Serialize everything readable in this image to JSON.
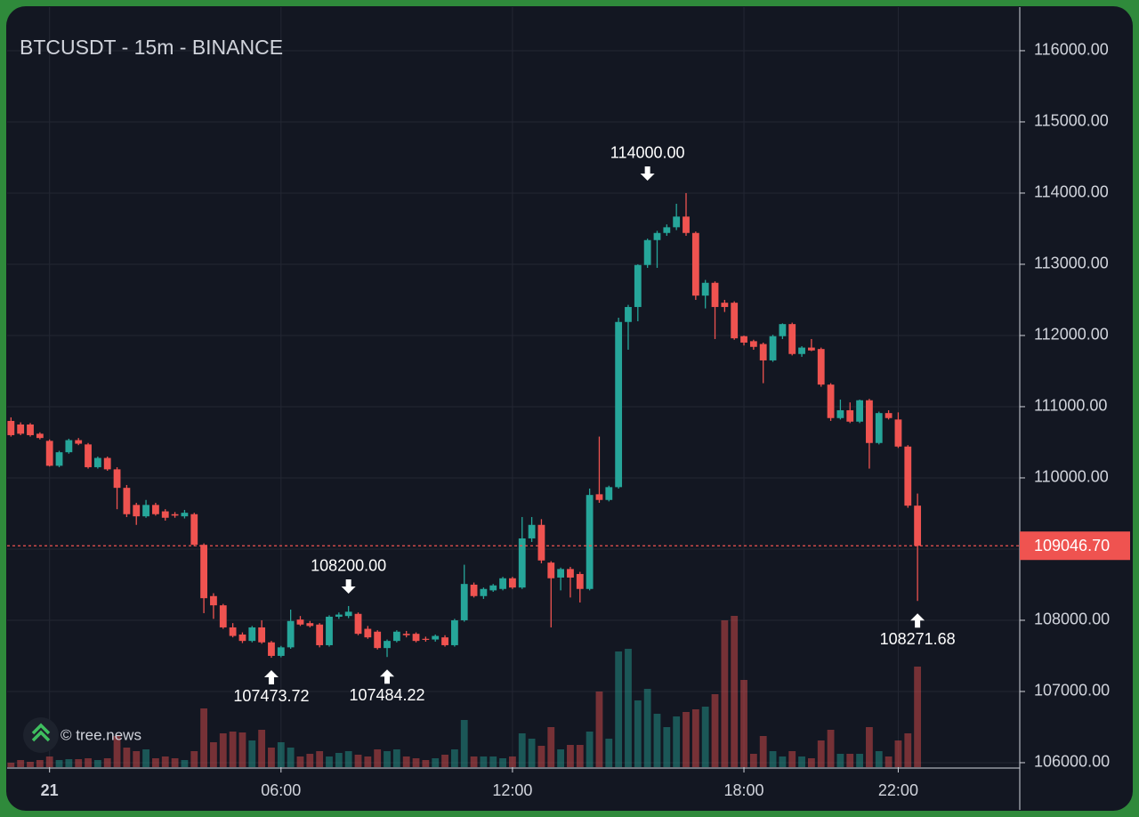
{
  "chart_data": {
    "type": "candlestick",
    "title": "BTCUSDT - 15m - BINANCE",
    "watermark": "© tree.news",
    "up_color": "#26a69a",
    "down_color": "#ef5350",
    "grid": true,
    "x": [
      -60,
      -45,
      -30,
      -15,
      0,
      15,
      30,
      45,
      60,
      75,
      90,
      105,
      120,
      135,
      150,
      165,
      180,
      195,
      210,
      225,
      240,
      255,
      270,
      285,
      300,
      315,
      330,
      345,
      360,
      375,
      390,
      405,
      420,
      435,
      450,
      465,
      480,
      495,
      510,
      525,
      540,
      555,
      570,
      585,
      600,
      615,
      630,
      645,
      660,
      675,
      690,
      705,
      720,
      735,
      750,
      765,
      780,
      795,
      810,
      825,
      840,
      855,
      870,
      885,
      900,
      915,
      930,
      945,
      960,
      975,
      990,
      1005,
      1020,
      1035,
      1050,
      1065,
      1080,
      1095,
      1110,
      1125,
      1140,
      1155,
      1170,
      1185,
      1200,
      1215,
      1230,
      1245,
      1260,
      1275,
      1290,
      1305,
      1320,
      1335,
      1350
    ],
    "open": [
      110800,
      110750,
      110750,
      110620,
      110520,
      110170,
      110360,
      110530,
      110470,
      110150,
      110280,
      110120,
      109860,
      109620,
      109460,
      109620,
      109530,
      109490,
      109460,
      109490,
      109060,
      108340,
      108210,
      107900,
      107800,
      107710,
      107900,
      107690,
      107500,
      107620,
      108010,
      107960,
      107940,
      107650,
      108050,
      108060,
      108090,
      107880,
      107840,
      107610,
      107710,
      107810,
      107810,
      107740,
      107730,
      107760,
      107650,
      108000,
      108500,
      108340,
      108420,
      108440,
      108590,
      108460,
      109150,
      109340,
      108810,
      108600,
      108720,
      108650,
      108440,
      109770,
      109690,
      109870,
      112190,
      112400,
      112990,
      113340,
      113440,
      113520,
      113670,
      113440,
      112560,
      112740,
      112460,
      112460,
      111990,
      111920,
      111880,
      111650,
      111990,
      112160,
      111740,
      111830,
      111810,
      111310,
      110840,
      110950,
      110790,
      111090,
      110490,
      110910,
      110820,
      110440,
      109610
    ],
    "high": [
      110850,
      110780,
      110770,
      110640,
      110540,
      110380,
      110550,
      110560,
      110490,
      110300,
      110300,
      110150,
      109900,
      109650,
      109690,
      109650,
      109560,
      109520,
      109550,
      109510,
      109080,
      108380,
      108230,
      107960,
      107830,
      107920,
      108000,
      107710,
      107640,
      108150,
      108060,
      107990,
      107960,
      108070,
      108110,
      108200,
      108110,
      107920,
      107860,
      107730,
      107860,
      107850,
      107830,
      107770,
      107800,
      107790,
      108020,
      108780,
      108530,
      108460,
      108510,
      108610,
      108610,
      109450,
      109450,
      109420,
      108830,
      108740,
      108750,
      108680,
      109850,
      110580,
      109890,
      112250,
      112430,
      113000,
      113360,
      113470,
      113560,
      113850,
      114000,
      113460,
      112780,
      112760,
      112500,
      112480,
      112000,
      111940,
      111900,
      112010,
      112170,
      112180,
      111850,
      111950,
      111830,
      111330,
      111100,
      111060,
      111100,
      111110,
      110930,
      110950,
      110920,
      110460,
      109780
    ],
    "low": [
      110580,
      110600,
      110580,
      110540,
      110160,
      110150,
      110340,
      110460,
      110130,
      110130,
      110100,
      109560,
      109450,
      109340,
      109440,
      109470,
      109400,
      109440,
      109430,
      109040,
      108100,
      108020,
      107880,
      107760,
      107680,
      107690,
      107670,
      107473.72,
      107480,
      107600,
      107920,
      107900,
      107620,
      107630,
      108020,
      108030,
      107790,
      107740,
      107590,
      107484.22,
      107690,
      107760,
      107690,
      107700,
      107700,
      107630,
      107630,
      107980,
      108320,
      108300,
      108400,
      108420,
      108440,
      108440,
      109100,
      108800,
      107900,
      108420,
      108320,
      108250,
      108420,
      109650,
      109670,
      109850,
      111800,
      112200,
      112950,
      112950,
      113400,
      113480,
      113400,
      112500,
      112380,
      111950,
      112330,
      111940,
      111860,
      111800,
      111330,
      111630,
      111950,
      111720,
      111700,
      111780,
      111280,
      110800,
      110820,
      110770,
      110770,
      110130,
      110470,
      110820,
      110420,
      109580,
      108271.68
    ],
    "close": [
      110600,
      110620,
      110600,
      110560,
      110170,
      110360,
      110530,
      110480,
      110150,
      110280,
      110120,
      109860,
      109490,
      109460,
      109620,
      109490,
      109440,
      109470,
      109510,
      109060,
      108310,
      108210,
      107900,
      107780,
      107710,
      107900,
      107690,
      107500,
      107620,
      107990,
      107940,
      107920,
      107650,
      108050,
      108080,
      108120,
      107810,
      107760,
      107610,
      107710,
      107840,
      107790,
      107710,
      107730,
      107780,
      107650,
      108000,
      108510,
      108340,
      108440,
      108490,
      108590,
      108460,
      109150,
      109340,
      108840,
      108590,
      108720,
      108600,
      108440,
      109760,
      109690,
      109870,
      112190,
      112400,
      112990,
      113340,
      113440,
      113520,
      113670,
      113440,
      112560,
      112740,
      112400,
      112400,
      111960,
      111900,
      111840,
      111650,
      111990,
      112160,
      111740,
      111830,
      111790,
      111310,
      110840,
      110950,
      110790,
      111090,
      110490,
      110910,
      110840,
      110440,
      109610,
      109046.7
    ],
    "volume": [
      5,
      8,
      6,
      8,
      12,
      8,
      9,
      9,
      10,
      8,
      10,
      35,
      22,
      18,
      20,
      10,
      12,
      10,
      8,
      18,
      66,
      28,
      38,
      40,
      39,
      30,
      42,
      22,
      28,
      22,
      12,
      15,
      18,
      12,
      16,
      18,
      14,
      12,
      20,
      18,
      20,
      12,
      10,
      8,
      10,
      14,
      20,
      53,
      12,
      12,
      12,
      10,
      12,
      38,
      32,
      24,
      45,
      20,
      25,
      25,
      40,
      85,
      32,
      130,
      133,
      75,
      88,
      60,
      45,
      57,
      62,
      65,
      68,
      82,
      165,
      170,
      98,
      15,
      35,
      18,
      12,
      18,
      12,
      10,
      30,
      42,
      15,
      15,
      15,
      45,
      18,
      12,
      30,
      38,
      113
    ],
    "xlim": [
      -66,
      1509
    ],
    "ylim": [
      105937,
      116612
    ],
    "xticks": [
      {
        "value": 0,
        "label": "21"
      },
      {
        "value": 360,
        "label": "06:00"
      },
      {
        "value": 720,
        "label": "12:00"
      },
      {
        "value": 1080,
        "label": "18:00"
      },
      {
        "value": 1320,
        "label": "22:00"
      }
    ],
    "yticks": [
      {
        "value": 106000,
        "label": "106000.00"
      },
      {
        "value": 107000,
        "label": "107000.00"
      },
      {
        "value": 108000,
        "label": "108000.00"
      },
      {
        "value": 109000,
        "label": "109000.00"
      },
      {
        "value": 110000,
        "label": "110000.00"
      },
      {
        "value": 111000,
        "label": "111000.00"
      },
      {
        "value": 112000,
        "label": "112000.00"
      },
      {
        "value": 113000,
        "label": "113000.00"
      },
      {
        "value": 114000,
        "label": "114000.00"
      },
      {
        "value": 115000,
        "label": "115000.00"
      },
      {
        "value": 116000,
        "label": "116000.00"
      }
    ],
    "price_line": {
      "value": 109046.7,
      "label": "109046.70"
    },
    "annotations": [
      {
        "label": "114000.00",
        "value": 114000,
        "x": 930,
        "position": "above"
      },
      {
        "label": "108200.00",
        "value": 108200,
        "x": 465,
        "position": "above"
      },
      {
        "label": "107473.72",
        "value": 107473.72,
        "x": 345,
        "position": "below"
      },
      {
        "label": "107484.22",
        "value": 107484.22,
        "x": 525,
        "position": "below"
      },
      {
        "label": "108271.68",
        "value": 108271.68,
        "x": 1350,
        "position": "below"
      }
    ]
  }
}
